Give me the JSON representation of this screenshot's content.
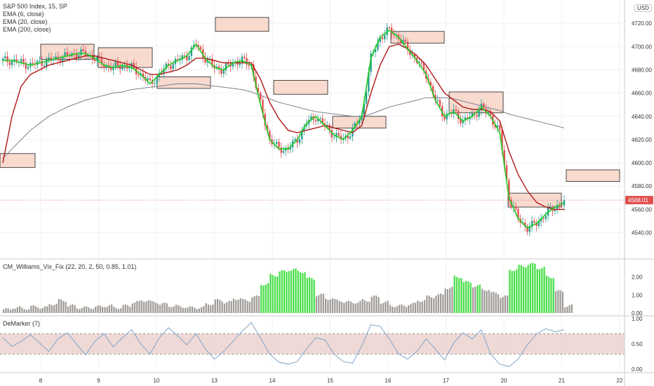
{
  "legend": {
    "title": "S&P 500 Index, 15, SP",
    "lines": [
      "EMA (6, close)",
      "EMA (20, close)",
      "EMA (200, close)"
    ]
  },
  "currency": "USD",
  "price_tag": "4568.01",
  "panel2_title": "CM_Williams_Vix_Fix (22, 20, 2, 50, 0.85, 1.01)",
  "panel3_title": "DeMarker (7)",
  "colors": {
    "ema6": "#22cc22",
    "ema20": "#b01818",
    "ema200": "#7a8290",
    "up_candle": "#2a9d8f",
    "down_candle": "#e05050",
    "vix_high": "#44dd44",
    "vix_normal": "#9e9a96",
    "demarker_line": "#7fa5c8",
    "demarker_band": "#e8c9c4",
    "box_fill": "#f6cdbf",
    "price_line": "#e05050"
  },
  "chart_data": [
    {
      "type": "candlestick",
      "title": "S&P 500 Index, 15, SP",
      "x_tick_labels": [
        "8",
        "9",
        "10",
        "13",
        "14",
        "15",
        "16",
        "17",
        "20",
        "21",
        "22"
      ],
      "y_ticks": [
        "4720.00",
        "4700.00",
        "4680.00",
        "4660.00",
        "4640.00",
        "4620.00",
        "4600.00",
        "4580.00",
        "4560.00",
        "4540.00"
      ],
      "ylim": [
        4518,
        4740
      ],
      "last_price": 4568.01,
      "series": [
        {
          "name": "EMA (6, close)",
          "values": [
            4688,
            4688,
            4686,
            4684,
            4686,
            4688,
            4690,
            4692,
            4694,
            4694,
            4690,
            4684,
            4682,
            4684,
            4682,
            4676,
            4668,
            4676,
            4684,
            4688,
            4692,
            4702,
            4690,
            4682,
            4680,
            4686,
            4688,
            4684,
            4650,
            4620,
            4612,
            4612,
            4620,
            4634,
            4640,
            4632,
            4624,
            4620,
            4628,
            4640,
            4690,
            4708,
            4714,
            4708,
            4698,
            4688,
            4676,
            4654,
            4640,
            4644,
            4636,
            4640,
            4648,
            4640,
            4626,
            4570,
            4552,
            4544,
            4548,
            4556,
            4562,
            4566
          ]
        },
        {
          "name": "EMA (20, close)",
          "values": [
            4600,
            4640,
            4666,
            4676,
            4680,
            4684,
            4686,
            4688,
            4690,
            4692,
            4692,
            4690,
            4688,
            4686,
            4684,
            4680,
            4676,
            4676,
            4678,
            4680,
            4684,
            4690,
            4690,
            4688,
            4686,
            4686,
            4686,
            4686,
            4672,
            4652,
            4638,
            4628,
            4626,
            4628,
            4630,
            4632,
            4630,
            4628,
            4626,
            4632,
            4660,
            4684,
            4700,
            4702,
            4698,
            4692,
            4684,
            4672,
            4660,
            4654,
            4648,
            4646,
            4646,
            4644,
            4636,
            4610,
            4590,
            4576,
            4566,
            4562,
            4560,
            4560
          ]
        },
        {
          "name": "EMA (200, close)",
          "values": [
            4604,
            4612,
            4620,
            4628,
            4634,
            4640,
            4644,
            4648,
            4651,
            4654,
            4656,
            4658,
            4660,
            4661,
            4663,
            4664,
            4665,
            4666,
            4667,
            4668,
            4668,
            4668,
            4667,
            4666,
            4665,
            4664,
            4663,
            4661,
            4658,
            4655,
            4652,
            4650,
            4648,
            4646,
            4644,
            4643,
            4642,
            4641,
            4640,
            4640,
            4642,
            4645,
            4648,
            4650,
            4652,
            4654,
            4656,
            4656,
            4656,
            4655,
            4653,
            4651,
            4649,
            4647,
            4645,
            4642,
            4640,
            4638,
            4636,
            4634,
            4632,
            4630
          ]
        }
      ],
      "zones": [
        {
          "low": 4596,
          "high": 4608
        },
        {
          "low": 4689,
          "high": 4702
        },
        {
          "low": 4682,
          "high": 4699
        },
        {
          "low": 4664,
          "high": 4674
        },
        {
          "low": 4713,
          "high": 4725
        },
        {
          "low": 4659,
          "high": 4671
        },
        {
          "low": 4630,
          "high": 4640
        },
        {
          "low": 4703,
          "high": 4713
        },
        {
          "low": 4643,
          "high": 4661
        },
        {
          "low": 4584,
          "high": 4594
        },
        {
          "low": 4562,
          "high": 4574
        }
      ]
    },
    {
      "type": "bar",
      "title": "CM_Williams_Vix_Fix (22, 20, 2, 50, 0.85, 1.01)",
      "y_ticks": [
        "2.00",
        "1.00",
        "0.00"
      ],
      "ylim": [
        0,
        2.8
      ],
      "highlight_threshold": 1.5,
      "values": [
        0.2,
        0.3,
        0.25,
        0.35,
        0.3,
        0.5,
        0.7,
        0.4,
        0.3,
        0.3,
        0.35,
        0.4,
        0.3,
        0.4,
        0.6,
        0.7,
        0.6,
        0.5,
        0.4,
        0.35,
        0.3,
        0.3,
        0.5,
        0.7,
        0.6,
        0.8,
        0.7,
        0.9,
        1.6,
        2.1,
        2.3,
        2.4,
        2.3,
        1.9,
        1.0,
        0.8,
        0.7,
        0.6,
        0.6,
        0.7,
        0.9,
        0.6,
        0.4,
        0.4,
        0.5,
        0.7,
        0.9,
        1.0,
        1.4,
        2.0,
        1.7,
        1.5,
        1.3,
        1.1,
        0.9,
        2.4,
        2.6,
        2.7,
        2.5,
        2.0,
        1.2,
        0.4
      ]
    },
    {
      "type": "line",
      "title": "DeMarker (7)",
      "y_ticks": [
        "1.00",
        "0.50",
        "0.00"
      ],
      "ylim": [
        0,
        1
      ],
      "band": [
        0.3,
        0.7
      ],
      "values": [
        0.62,
        0.45,
        0.55,
        0.68,
        0.52,
        0.35,
        0.6,
        0.72,
        0.5,
        0.28,
        0.55,
        0.7,
        0.44,
        0.62,
        0.78,
        0.5,
        0.3,
        0.62,
        0.82,
        0.66,
        0.48,
        0.7,
        0.4,
        0.2,
        0.35,
        0.55,
        0.75,
        0.92,
        0.62,
        0.3,
        0.14,
        0.1,
        0.15,
        0.4,
        0.62,
        0.58,
        0.3,
        0.15,
        0.12,
        0.46,
        0.88,
        0.85,
        0.6,
        0.3,
        0.2,
        0.35,
        0.6,
        0.4,
        0.18,
        0.52,
        0.72,
        0.6,
        0.78,
        0.3,
        0.1,
        0.05,
        0.2,
        0.48,
        0.7,
        0.8,
        0.74,
        0.78
      ]
    }
  ]
}
